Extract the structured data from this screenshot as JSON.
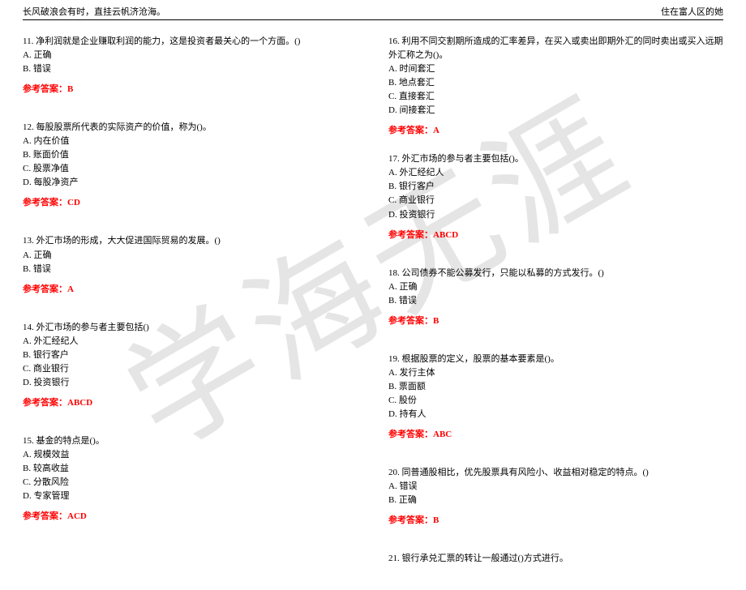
{
  "header": {
    "left": "长风破浪会有时，直挂云帆济沧海。",
    "right": "住在富人区的她"
  },
  "watermark": "学海无涯",
  "answer_label_prefix": "参考答案：",
  "left_questions": [
    {
      "q": "11. 净利润就是企业赚取利润的能力，这是投资者最关心的一个方面。()",
      "opts": [
        "A. 正确",
        "B. 错误"
      ],
      "ans": "B"
    },
    {
      "q": "12. 每股股票所代表的实际资产的价值，称为()。",
      "opts": [
        "A. 内在价值",
        "B. 账面价值",
        "C. 股票净值",
        "D. 每股净资产"
      ],
      "ans": "CD"
    },
    {
      "q": "13. 外汇市场的形成，大大促进国际贸易的发展。()",
      "opts": [
        "A. 正确",
        "B. 错误"
      ],
      "ans": "A"
    },
    {
      "q": "14. 外汇市场的参与者主要包括()",
      "opts": [
        "A. 外汇经纪人",
        "B. 银行客户",
        "C. 商业银行",
        "D. 投资银行"
      ],
      "ans": "ABCD"
    },
    {
      "q": "15. 基金的特点是()。",
      "opts": [
        "A. 规模效益",
        "B. 较高收益",
        "C. 分散风险",
        "D. 专家管理"
      ],
      "ans": "ACD"
    }
  ],
  "right_questions": [
    {
      "q": "16. 利用不同交割期所造成的汇率差异，在买入或卖出即期外汇的同时卖出或买入远期外汇称之为()。",
      "opts": [
        "A. 时间套汇",
        "B. 地点套汇",
        "C. 直接套汇",
        "D. 间接套汇"
      ],
      "ans": "A"
    },
    {
      "q": "17. 外汇市场的参与者主要包括()。",
      "opts": [
        "A. 外汇经纪人",
        "B. 银行客户",
        "C. 商业银行",
        "D. 投资银行"
      ],
      "ans": "ABCD"
    },
    {
      "q": "18. 公司债券不能公募发行，只能以私募的方式发行。()",
      "opts": [
        "A. 正确",
        "B. 错误"
      ],
      "ans": "B"
    },
    {
      "q": "19. 根据股票的定义，股票的基本要素是()。",
      "opts": [
        "A. 发行主体",
        "B. 票面额",
        "C. 股份",
        "D. 持有人"
      ],
      "ans": "ABC"
    },
    {
      "q": "20. 同普通股相比，优先股票具有风险小、收益相对稳定的特点。()",
      "opts": [
        "A. 错误",
        "B. 正确"
      ],
      "ans": "B"
    },
    {
      "q": "21. 银行承兑汇票的转让一般通过()方式进行。",
      "opts": [],
      "ans": null
    }
  ]
}
